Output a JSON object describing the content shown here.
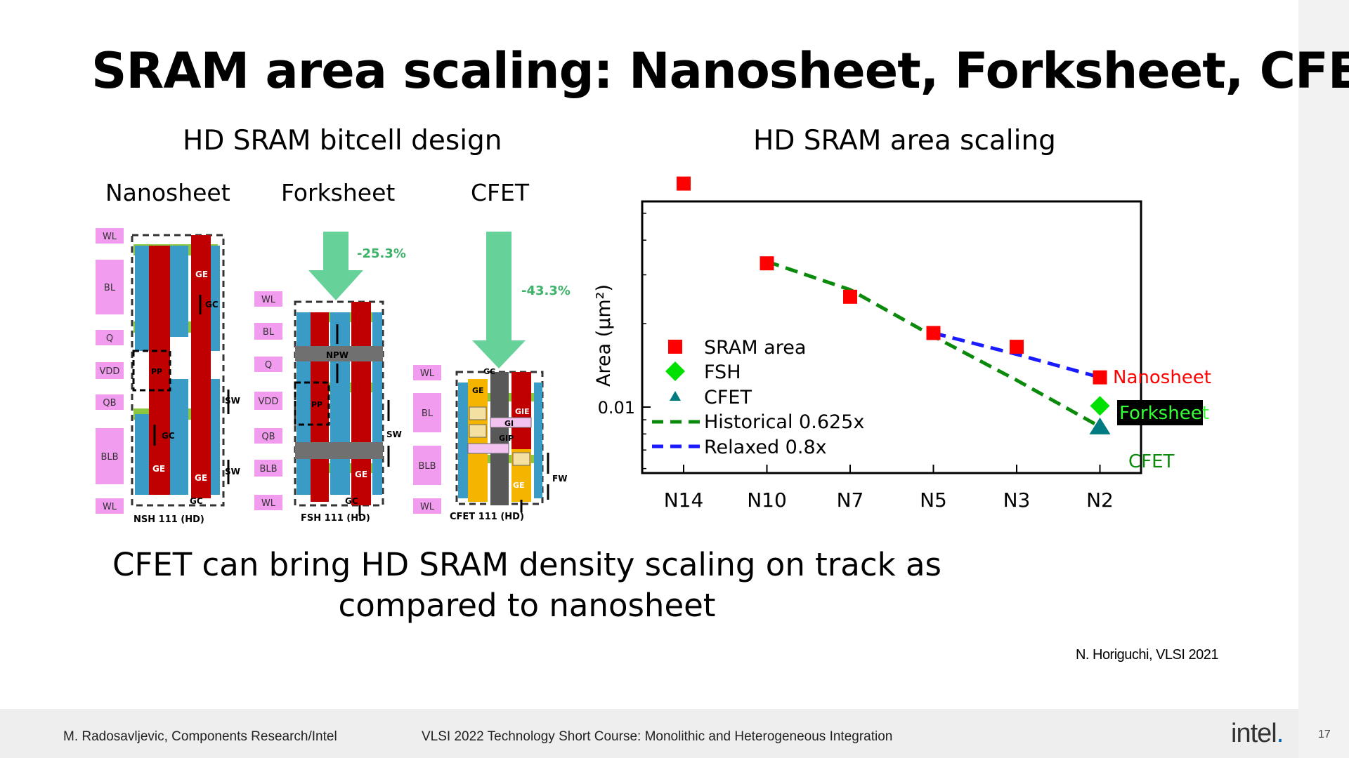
{
  "slide": {
    "title": "SRAM area scaling: Nanosheet, Forksheet, CFET",
    "left_heading": "HD SRAM bitcell design",
    "right_heading": "HD SRAM area scaling",
    "col_labels": [
      "Nanosheet",
      "Forksheet",
      "CFET"
    ],
    "conclusion_line1": "CFET can bring HD SRAM density scaling on track as",
    "conclusion_line2": "compared to nanosheet",
    "citation": "N. Horiguchi, VLSI 2021"
  },
  "bitcell": {
    "nanosheet_signals": [
      "WL",
      "BL",
      "Q",
      "VDD",
      "QB",
      "BLB",
      "WL"
    ],
    "forksheet_signals": [
      "WL",
      "BL",
      "Q",
      "VDD",
      "QB",
      "BLB",
      "WL"
    ],
    "cfet_signals": [
      "WL",
      "BL",
      "BLB",
      "WL"
    ],
    "nsh_caption": "NSH 111 (HD)",
    "fsh_caption": "FSH 111 (HD)",
    "cfet_caption": "CFET 111 (HD)",
    "fsh_reduction": "-25.3%",
    "cfet_reduction": "-43.3%",
    "tags": {
      "ge": "GE",
      "gc": "GC",
      "pp": "PP",
      "sw": "SW",
      "npw": "NPW",
      "gi": "GI",
      "gip": "GIP",
      "gie": "GIE",
      "fw": "FW"
    },
    "colors": {
      "gate": "#c00000",
      "active": "#3a9cc6",
      "pink": "#f29cf0",
      "arrow": "#66d29a",
      "gray": "#707070",
      "cfet_orange": "#f5b400",
      "green_band": "#8dc63f"
    }
  },
  "chart_data": {
    "type": "scatter",
    "title": "",
    "xlabel": "",
    "ylabel": "Area (μm²)",
    "y_scale": "log",
    "categories": [
      "N14",
      "N10",
      "N7",
      "N5",
      "N3",
      "N2"
    ],
    "y_ticks": [
      {
        "label": "0.01",
        "value": 0.01
      }
    ],
    "series": [
      {
        "name": "SRAM area",
        "marker": "square",
        "color": "#ff0000",
        "values": [
          0.064,
          0.033,
          0.025,
          0.0185,
          0.0165,
          0.0128
        ]
      },
      {
        "name": "FSH",
        "marker": "diamond",
        "color": "#00e000",
        "points": [
          {
            "x": "N2",
            "y": 0.0101
          }
        ]
      },
      {
        "name": "CFET",
        "marker": "triangle",
        "color": "#007b7f",
        "points": [
          {
            "x": "N2",
            "y": 0.0085
          }
        ]
      },
      {
        "name": "Historical 0.625x",
        "style": "dashed",
        "color": "#0a8a0a",
        "points": [
          {
            "x": "N10",
            "y": 0.0335
          },
          {
            "x": "N7",
            "y": 0.0265
          },
          {
            "x": "N5",
            "y": 0.018
          },
          {
            "x": "N3",
            "y": 0.0125
          },
          {
            "x": "N2",
            "y": 0.0085
          }
        ]
      },
      {
        "name": "Relaxed 0.8x",
        "style": "dashed",
        "color": "#1a1aff",
        "points": [
          {
            "x": "N5",
            "y": 0.0185
          },
          {
            "x": "N3",
            "y": 0.0155
          },
          {
            "x": "N2",
            "y": 0.0128
          }
        ]
      }
    ],
    "annotations": [
      {
        "text": "Nanosheet",
        "color": "#ff0000"
      },
      {
        "text": "Forksheet",
        "color": "#33ff33",
        "background": "#000000"
      },
      {
        "text": "CFET",
        "color": "#0a8a0a"
      }
    ],
    "legend_position": "center-left",
    "grid": false
  },
  "footer": {
    "author": "M. Radosavljevic, Components Research/Intel",
    "event": "VLSI 2022 Technology Short Course: Monolithic and Heterogeneous Integration",
    "logo_text": "intel",
    "logo_dot": ".",
    "page": "17"
  }
}
